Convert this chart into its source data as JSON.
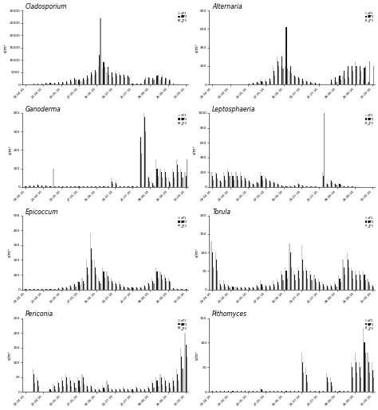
{
  "x_labels": [
    "03.04.16",
    "23.04.16",
    "10.05.16",
    "27.05.16",
    "16.06.16",
    "05.07.16",
    "21.07.16",
    "08.08.16",
    "26.08.16",
    "13.09.16"
  ],
  "series_colors": [
    "#c8c8c8",
    "#1a1a1a",
    "#888888"
  ],
  "series_labels": [
    "oP1",
    "■P2",
    "△P3"
  ],
  "subplots": [
    {
      "title": "Cladosporium",
      "ylabel": "s/m³",
      "ylim": 30000,
      "ytick_step": 5000,
      "p1": [
        100,
        100,
        150,
        200,
        200,
        200,
        250,
        300,
        200,
        300,
        300,
        400,
        700,
        1000,
        1500,
        2000,
        3000,
        4000,
        7000,
        6500,
        5000,
        5000,
        5500,
        5000,
        4500,
        3500,
        200,
        300,
        400,
        1500,
        2000,
        2000,
        2500,
        2000,
        1500,
        1200,
        200,
        150,
        100,
        50
      ],
      "p2": [
        200,
        200,
        300,
        400,
        500,
        600,
        700,
        800,
        900,
        1000,
        1500,
        2000,
        2500,
        2000,
        2500,
        3500,
        5000,
        6000,
        12000,
        9000,
        7000,
        5000,
        4500,
        4000,
        4000,
        3500,
        500,
        400,
        500,
        2000,
        3000,
        2500,
        3500,
        3000,
        2500,
        2000,
        300,
        200,
        100,
        50
      ],
      "p3": [
        100,
        100,
        100,
        150,
        200,
        300,
        400,
        500,
        500,
        600,
        800,
        1200,
        2000,
        1500,
        2000,
        2500,
        4000,
        5000,
        27000,
        7000,
        4000,
        3000,
        3500,
        3500,
        3000,
        3000,
        400,
        300,
        300,
        3000,
        2500,
        2000,
        4000,
        3500,
        2500,
        1800,
        200,
        100,
        100,
        50
      ]
    },
    {
      "title": "Alternaria",
      "ylabel": "s/m³",
      "ylim": 800,
      "ytick_step": 200,
      "p1": [
        2,
        2,
        2,
        2,
        2,
        2,
        5,
        5,
        5,
        10,
        20,
        30,
        50,
        50,
        80,
        200,
        300,
        200,
        200,
        150,
        100,
        80,
        60,
        50,
        30,
        20,
        10,
        5,
        5,
        20,
        50,
        80,
        100,
        150,
        200,
        250,
        50,
        50,
        20,
        10
      ],
      "p2": [
        2,
        2,
        2,
        2,
        2,
        2,
        5,
        5,
        5,
        10,
        15,
        25,
        40,
        40,
        60,
        150,
        250,
        300,
        620,
        200,
        100,
        80,
        60,
        40,
        25,
        15,
        8,
        5,
        5,
        50,
        80,
        100,
        150,
        200,
        200,
        200,
        200,
        180,
        30,
        5
      ],
      "p3": [
        2,
        2,
        2,
        2,
        2,
        2,
        2,
        2,
        2,
        5,
        10,
        15,
        30,
        25,
        40,
        100,
        200,
        175,
        175,
        125,
        75,
        60,
        40,
        30,
        20,
        10,
        5,
        2,
        2,
        15,
        30,
        50,
        60,
        80,
        150,
        200,
        150,
        200,
        250,
        200
      ]
    },
    {
      "title": "Ganoderma",
      "ylabel": "s/m³",
      "ylim": 400,
      "ytick_step": 100,
      "p1": [
        5,
        10,
        10,
        15,
        10,
        10,
        5,
        100,
        5,
        5,
        5,
        5,
        5,
        5,
        5,
        5,
        5,
        5,
        5,
        5,
        5,
        50,
        30,
        5,
        5,
        5,
        5,
        5,
        250,
        500,
        60,
        30,
        150,
        100,
        100,
        50,
        100,
        150,
        100,
        80
      ],
      "p2": [
        5,
        10,
        8,
        12,
        8,
        8,
        5,
        5,
        5,
        5,
        5,
        5,
        5,
        5,
        5,
        5,
        5,
        5,
        5,
        5,
        5,
        30,
        20,
        5,
        5,
        5,
        5,
        5,
        270,
        380,
        50,
        20,
        100,
        80,
        80,
        30,
        80,
        120,
        80,
        60
      ],
      "p3": [
        2,
        5,
        5,
        8,
        5,
        5,
        2,
        2,
        2,
        2,
        2,
        2,
        2,
        2,
        2,
        2,
        2,
        2,
        2,
        2,
        2,
        15,
        10,
        2,
        2,
        2,
        2,
        2,
        180,
        300,
        30,
        10,
        60,
        50,
        50,
        20,
        50,
        80,
        50,
        150
      ]
    },
    {
      "title": "Leptosphaeria",
      "ylabel": "s/m³",
      "ylim": 1000,
      "ytick_step": 200,
      "p1": [
        200,
        200,
        100,
        200,
        250,
        200,
        200,
        200,
        150,
        100,
        50,
        80,
        200,
        150,
        100,
        80,
        50,
        30,
        20,
        20,
        30,
        50,
        30,
        20,
        10,
        10,
        5,
        200,
        50,
        100,
        50,
        50,
        20,
        20,
        10,
        5,
        5,
        2,
        2,
        2
      ],
      "p2": [
        150,
        180,
        80,
        150,
        200,
        150,
        150,
        150,
        120,
        80,
        40,
        60,
        150,
        120,
        80,
        60,
        40,
        20,
        15,
        15,
        25,
        40,
        25,
        15,
        8,
        8,
        3,
        150,
        40,
        80,
        40,
        40,
        15,
        15,
        8,
        3,
        3,
        1,
        1,
        1
      ],
      "p3": [
        100,
        120,
        60,
        100,
        150,
        100,
        100,
        100,
        80,
        60,
        30,
        50,
        100,
        80,
        60,
        50,
        30,
        15,
        10,
        10,
        15,
        30,
        15,
        10,
        5,
        5,
        2,
        1000,
        30,
        60,
        30,
        30,
        10,
        10,
        5,
        2,
        2,
        1,
        1,
        1
      ]
    },
    {
      "title": "Epicoccum",
      "ylabel": "s/m³",
      "ylim": 500,
      "ytick_step": 100,
      "p1": [
        2,
        2,
        2,
        2,
        2,
        2,
        5,
        5,
        10,
        15,
        20,
        30,
        40,
        60,
        80,
        200,
        380,
        200,
        80,
        150,
        120,
        80,
        60,
        50,
        30,
        20,
        20,
        20,
        20,
        30,
        50,
        80,
        150,
        120,
        100,
        80,
        10,
        8,
        8,
        2
      ],
      "p2": [
        2,
        2,
        2,
        2,
        2,
        2,
        3,
        3,
        8,
        12,
        15,
        25,
        35,
        50,
        60,
        150,
        280,
        150,
        60,
        120,
        90,
        60,
        40,
        35,
        20,
        15,
        15,
        15,
        15,
        25,
        40,
        60,
        120,
        100,
        80,
        60,
        8,
        6,
        6,
        2
      ],
      "p3": [
        1,
        1,
        1,
        1,
        1,
        1,
        2,
        2,
        5,
        8,
        10,
        15,
        20,
        30,
        40,
        100,
        200,
        100,
        40,
        80,
        60,
        40,
        25,
        20,
        12,
        8,
        8,
        8,
        8,
        15,
        25,
        40,
        80,
        70,
        60,
        50,
        5,
        4,
        4,
        1
      ]
    },
    {
      "title": "Torula",
      "ylabel": "s/m³",
      "ylim": 200,
      "ytick_step": 50,
      "p1": [
        130,
        100,
        25,
        25,
        15,
        10,
        8,
        8,
        8,
        8,
        8,
        15,
        25,
        15,
        15,
        25,
        30,
        50,
        60,
        125,
        50,
        60,
        120,
        60,
        50,
        40,
        30,
        20,
        15,
        15,
        20,
        40,
        80,
        100,
        60,
        50,
        50,
        50,
        30,
        15
      ],
      "p2": [
        100,
        80,
        15,
        15,
        10,
        8,
        5,
        5,
        5,
        5,
        5,
        10,
        15,
        10,
        10,
        15,
        20,
        40,
        50,
        100,
        40,
        50,
        80,
        50,
        40,
        30,
        20,
        15,
        10,
        10,
        15,
        30,
        60,
        80,
        50,
        40,
        40,
        40,
        20,
        10
      ],
      "p3": [
        60,
        50,
        8,
        8,
        6,
        5,
        3,
        3,
        3,
        3,
        3,
        6,
        8,
        6,
        6,
        8,
        12,
        25,
        30,
        60,
        25,
        30,
        50,
        30,
        25,
        20,
        12,
        8,
        6,
        6,
        8,
        20,
        40,
        60,
        30,
        25,
        25,
        25,
        12,
        6
      ]
    },
    {
      "title": "Periconia",
      "ylabel": "s/m³",
      "ylim": 250,
      "ytick_step": 50,
      "p1": [
        2,
        2,
        80,
        50,
        2,
        2,
        15,
        25,
        40,
        50,
        60,
        50,
        40,
        50,
        60,
        25,
        25,
        15,
        15,
        25,
        40,
        15,
        15,
        15,
        20,
        15,
        15,
        20,
        15,
        15,
        20,
        40,
        50,
        60,
        50,
        40,
        50,
        80,
        150,
        200
      ],
      "p2": [
        2,
        2,
        60,
        40,
        2,
        2,
        10,
        20,
        30,
        40,
        50,
        40,
        30,
        40,
        50,
        20,
        20,
        10,
        10,
        15,
        25,
        10,
        10,
        10,
        12,
        10,
        10,
        15,
        10,
        10,
        15,
        30,
        40,
        50,
        40,
        30,
        40,
        60,
        120,
        160
      ],
      "p3": [
        1,
        1,
        30,
        20,
        1,
        1,
        5,
        10,
        15,
        20,
        25,
        20,
        15,
        20,
        25,
        10,
        10,
        5,
        5,
        8,
        12,
        5,
        5,
        5,
        6,
        5,
        5,
        8,
        5,
        5,
        8,
        15,
        20,
        25,
        20,
        15,
        20,
        40,
        80,
        120
      ]
    },
    {
      "title": "Pithomyces",
      "ylabel": "s/m³",
      "ylim": 150,
      "ytick_step": 50,
      "p1": [
        2,
        2,
        2,
        2,
        2,
        2,
        2,
        2,
        2,
        2,
        2,
        2,
        8,
        2,
        2,
        2,
        2,
        2,
        2,
        2,
        2,
        2,
        80,
        50,
        2,
        2,
        2,
        2,
        40,
        30,
        2,
        2,
        2,
        2,
        60,
        80,
        60,
        130,
        80,
        60
      ],
      "p2": [
        2,
        2,
        2,
        2,
        2,
        2,
        2,
        2,
        2,
        2,
        2,
        2,
        5,
        2,
        2,
        2,
        2,
        2,
        2,
        2,
        2,
        2,
        60,
        35,
        2,
        2,
        2,
        2,
        30,
        20,
        2,
        2,
        2,
        2,
        50,
        60,
        50,
        100,
        60,
        45
      ],
      "p3": [
        1,
        1,
        1,
        1,
        1,
        1,
        1,
        1,
        1,
        1,
        1,
        1,
        3,
        1,
        1,
        1,
        1,
        1,
        1,
        1,
        1,
        1,
        40,
        20,
        1,
        1,
        1,
        1,
        20,
        12,
        1,
        1,
        1,
        1,
        30,
        40,
        30,
        80,
        40,
        30
      ]
    }
  ]
}
